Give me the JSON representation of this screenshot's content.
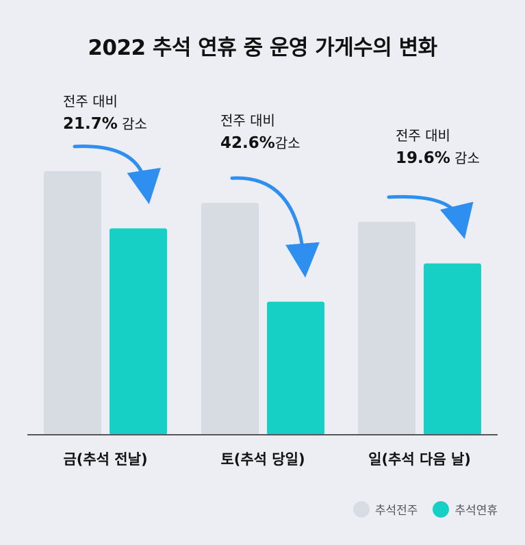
{
  "chart_data": {
    "type": "bar",
    "title": "2022 추석 연휴 중 운영 가게수의 변화",
    "categories": [
      "금(추석 전날)",
      "토(추석 당일)",
      "일(추석 다음 날)"
    ],
    "series": [
      {
        "name": "추석전주",
        "color": "#d7dce3",
        "values": [
          100,
          88,
          80.8
        ]
      },
      {
        "name": "추석연휴",
        "color": "#16d0c6",
        "values": [
          78.3,
          50.5,
          65
        ]
      }
    ],
    "ylim": [
      0,
      100
    ],
    "grid": false,
    "legend_position": "bottom-right",
    "annotations": [
      {
        "line1": "전주 대비",
        "pct": "21.7%",
        "suffix": " 감소"
      },
      {
        "line1": "전주 대비",
        "pct": "42.6%",
        "suffix": "감소"
      },
      {
        "line1": "전주 대비",
        "pct": "19.6%",
        "suffix": " 감소"
      }
    ],
    "arrow_color": "#2f8ff0"
  }
}
